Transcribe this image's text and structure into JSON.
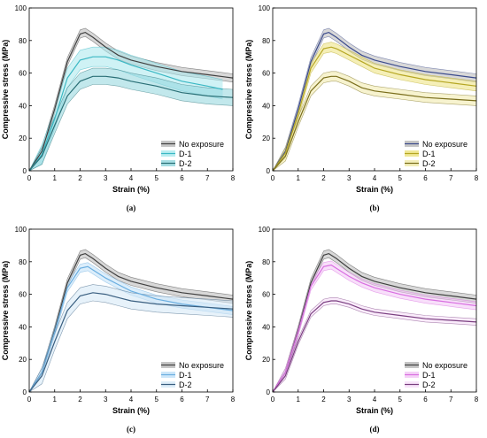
{
  "figure": {
    "captions": [
      "(a)",
      "(b)",
      "(c)",
      "(d)"
    ]
  },
  "chart_data": [
    {
      "type": "line",
      "panel": "(a)",
      "xlabel": "Strain (%)",
      "ylabel": "Compressive stress (MPa)",
      "xlim": [
        0,
        8
      ],
      "ylim": [
        0,
        100
      ],
      "xticks": [
        0,
        1,
        2,
        3,
        4,
        5,
        6,
        7,
        8
      ],
      "yticks": [
        0,
        20,
        40,
        60,
        80,
        100
      ],
      "grid": false,
      "legend_position": "bottom-right",
      "series": [
        {
          "name": "No exposure",
          "color": "#404040",
          "band_color": "#b8b8b8",
          "x": [
            0,
            0.5,
            1.0,
            1.5,
            2.0,
            2.2,
            2.5,
            3.0,
            3.5,
            4.0,
            5.0,
            6.0,
            7.0,
            8.0
          ],
          "y": [
            0,
            12,
            38,
            67,
            84,
            85,
            82,
            76,
            71,
            68,
            64,
            61,
            59,
            57
          ],
          "band": 2.5
        },
        {
          "name": "D-1",
          "color": "#3bb8c4",
          "band_color": "#a7e8ec",
          "x": [
            0,
            0.5,
            1.0,
            1.5,
            2.0,
            2.5,
            3.0,
            3.5,
            4.0,
            5.0,
            6.0,
            7.0,
            7.6
          ],
          "y": [
            0,
            10,
            32,
            57,
            68,
            70,
            70,
            68,
            65,
            60,
            55,
            52,
            50
          ],
          "band": 6
        },
        {
          "name": "D-2",
          "color": "#2a6f76",
          "band_color": "#8fd6dc",
          "x": [
            0,
            0.5,
            1.0,
            1.5,
            2.0,
            2.5,
            3.0,
            3.5,
            4.0,
            5.0,
            6.0,
            7.0,
            8.0
          ],
          "y": [
            0,
            9,
            28,
            46,
            55,
            58,
            58,
            57,
            55,
            52,
            48,
            46,
            45
          ],
          "band": 5
        }
      ]
    },
    {
      "type": "line",
      "panel": "(b)",
      "xlabel": "Strain (%)",
      "ylabel": "Compressive stress (MPa)",
      "xlim": [
        0,
        8
      ],
      "ylim": [
        0,
        100
      ],
      "xticks": [
        0,
        1,
        2,
        3,
        4,
        5,
        6,
        7,
        8
      ],
      "yticks": [
        0,
        20,
        40,
        60,
        80,
        100
      ],
      "grid": false,
      "legend_position": "bottom-right",
      "series": [
        {
          "name": "No exposure",
          "color": "#3a4a8c",
          "band_color": "#b8b8b8",
          "x": [
            0,
            0.5,
            1.0,
            1.5,
            2.0,
            2.2,
            2.5,
            3.0,
            3.5,
            4.0,
            5.0,
            6.0,
            7.0,
            8.0
          ],
          "y": [
            0,
            12,
            38,
            67,
            84,
            85,
            82,
            76,
            71,
            68,
            64,
            61,
            59,
            57
          ],
          "band": 2.5
        },
        {
          "name": "D-1",
          "color": "#b5a623",
          "band_color": "#ece27c",
          "x": [
            0,
            0.5,
            1.0,
            1.5,
            2.0,
            2.3,
            2.5,
            3.0,
            3.5,
            4.0,
            5.0,
            6.0,
            7.0,
            8.0
          ],
          "y": [
            0,
            11,
            35,
            63,
            75,
            76,
            75,
            71,
            67,
            63,
            59,
            56,
            54,
            52
          ],
          "band": 3
        },
        {
          "name": "D-2",
          "color": "#7a6e1c",
          "band_color": "#f0eaa8",
          "x": [
            0,
            0.5,
            1.0,
            1.5,
            2.0,
            2.3,
            2.5,
            3.0,
            3.5,
            4.0,
            5.0,
            6.0,
            7.0,
            8.0
          ],
          "y": [
            0,
            9,
            30,
            49,
            57,
            58,
            58,
            55,
            51,
            49,
            47,
            45,
            44,
            43
          ],
          "band": 3
        }
      ]
    },
    {
      "type": "line",
      "panel": "(c)",
      "xlabel": "Strain (%)",
      "ylabel": "Compressive stress (MPa)",
      "xlim": [
        0,
        8
      ],
      "ylim": [
        0,
        100
      ],
      "xticks": [
        0,
        1,
        2,
        3,
        4,
        5,
        6,
        7,
        8
      ],
      "yticks": [
        0,
        20,
        40,
        60,
        80,
        100
      ],
      "grid": false,
      "legend_position": "bottom-right",
      "series": [
        {
          "name": "No exposure",
          "color": "#404040",
          "band_color": "#b8b8b8",
          "x": [
            0,
            0.5,
            1.0,
            1.5,
            2.0,
            2.2,
            2.5,
            3.0,
            3.5,
            4.0,
            5.0,
            6.0,
            7.0,
            8.0
          ],
          "y": [
            0,
            12,
            38,
            67,
            84,
            85,
            82,
            76,
            71,
            68,
            64,
            61,
            59,
            57
          ],
          "band": 2.5
        },
        {
          "name": "D-1",
          "color": "#6aaee0",
          "band_color": "#bfe0f7",
          "x": [
            0,
            0.5,
            1.0,
            1.5,
            2.0,
            2.3,
            2.5,
            3.0,
            3.5,
            4.0,
            5.0,
            6.0,
            7.0,
            8.0
          ],
          "y": [
            0,
            12,
            37,
            64,
            76,
            77,
            75,
            70,
            66,
            62,
            57,
            54,
            52,
            50
          ],
          "band": 2.5
        },
        {
          "name": "D-2",
          "color": "#3a5f80",
          "band_color": "#d4e8f6",
          "x": [
            0,
            0.5,
            1.0,
            1.5,
            2.0,
            2.5,
            3.0,
            3.5,
            4.0,
            5.0,
            6.0,
            7.0,
            8.0
          ],
          "y": [
            0,
            10,
            31,
            50,
            59,
            61,
            60,
            58,
            56,
            54,
            53,
            52,
            51
          ],
          "band": 5
        }
      ]
    },
    {
      "type": "line",
      "panel": "(d)",
      "xlabel": "Strain (%)",
      "ylabel": "Compressive stress (MPa)",
      "xlim": [
        0,
        8
      ],
      "ylim": [
        0,
        100
      ],
      "xticks": [
        0,
        1,
        2,
        3,
        4,
        5,
        6,
        7,
        8
      ],
      "yticks": [
        0,
        20,
        40,
        60,
        80,
        100
      ],
      "grid": false,
      "legend_position": "bottom-right",
      "series": [
        {
          "name": "No exposure",
          "color": "#404040",
          "band_color": "#b8b8b8",
          "x": [
            0,
            0.5,
            1.0,
            1.5,
            2.0,
            2.2,
            2.5,
            3.0,
            3.5,
            4.0,
            5.0,
            6.0,
            7.0,
            8.0
          ],
          "y": [
            0,
            12,
            38,
            67,
            84,
            85,
            82,
            76,
            71,
            68,
            64,
            61,
            59,
            57
          ],
          "band": 2.5
        },
        {
          "name": "D-1",
          "color": "#d86ee0",
          "band_color": "#f2c4f5",
          "x": [
            0,
            0.5,
            1.0,
            1.5,
            2.0,
            2.3,
            2.5,
            3.0,
            3.5,
            4.0,
            5.0,
            6.0,
            7.0,
            8.0
          ],
          "y": [
            0,
            12,
            37,
            65,
            77,
            78,
            76,
            71,
            67,
            64,
            60,
            57,
            55,
            53
          ],
          "band": 2.5
        },
        {
          "name": "D-2",
          "color": "#7a3f80",
          "band_color": "#f6dcf8",
          "x": [
            0,
            0.5,
            1.0,
            1.5,
            2.0,
            2.3,
            2.5,
            3.0,
            3.5,
            4.0,
            5.0,
            6.0,
            7.0,
            8.0
          ],
          "y": [
            0,
            10,
            31,
            48,
            55,
            56,
            56,
            54,
            51,
            49,
            47,
            45,
            44,
            43
          ],
          "band": 2
        }
      ]
    }
  ]
}
